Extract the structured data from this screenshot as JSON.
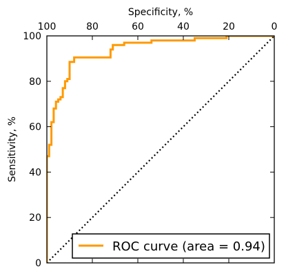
{
  "chart_data": {
    "type": "line",
    "title": "",
    "xlabel": "Specificity, %",
    "ylabel": "Sensitivity, %",
    "x_axis_position": "top",
    "x_reversed": true,
    "xlim": [
      100,
      0
    ],
    "ylim": [
      0,
      100
    ],
    "x_ticks": [
      100,
      80,
      60,
      40,
      20,
      0
    ],
    "y_ticks": [
      0,
      20,
      40,
      60,
      80,
      100
    ],
    "grid": false,
    "legend_position": "bottom-right",
    "series": [
      {
        "name": "ROC curve (area = 0.94)",
        "color": "#ff9900",
        "style": "solid",
        "points": [
          [
            100,
            0
          ],
          [
            100,
            47
          ],
          [
            99,
            47
          ],
          [
            99,
            52
          ],
          [
            98,
            52
          ],
          [
            98,
            62
          ],
          [
            97,
            62
          ],
          [
            97,
            68
          ],
          [
            96,
            68
          ],
          [
            96,
            71
          ],
          [
            95,
            71
          ],
          [
            95,
            72
          ],
          [
            94,
            72
          ],
          [
            94,
            73
          ],
          [
            93,
            73
          ],
          [
            93,
            77
          ],
          [
            92,
            77
          ],
          [
            92,
            80
          ],
          [
            91,
            80
          ],
          [
            91,
            81
          ],
          [
            90,
            81
          ],
          [
            90,
            88.5
          ],
          [
            88,
            88.5
          ],
          [
            88,
            90.5
          ],
          [
            72,
            90.5
          ],
          [
            72,
            94
          ],
          [
            71,
            94
          ],
          [
            71,
            96
          ],
          [
            66,
            96
          ],
          [
            66,
            97
          ],
          [
            54,
            97
          ],
          [
            54,
            98
          ],
          [
            35,
            98
          ],
          [
            35,
            99
          ],
          [
            21,
            99
          ],
          [
            21,
            100
          ],
          [
            0,
            100
          ]
        ]
      },
      {
        "name": "",
        "color": "#000000",
        "style": "dotted",
        "points": [
          [
            100,
            0
          ],
          [
            0,
            100
          ]
        ]
      }
    ]
  }
}
